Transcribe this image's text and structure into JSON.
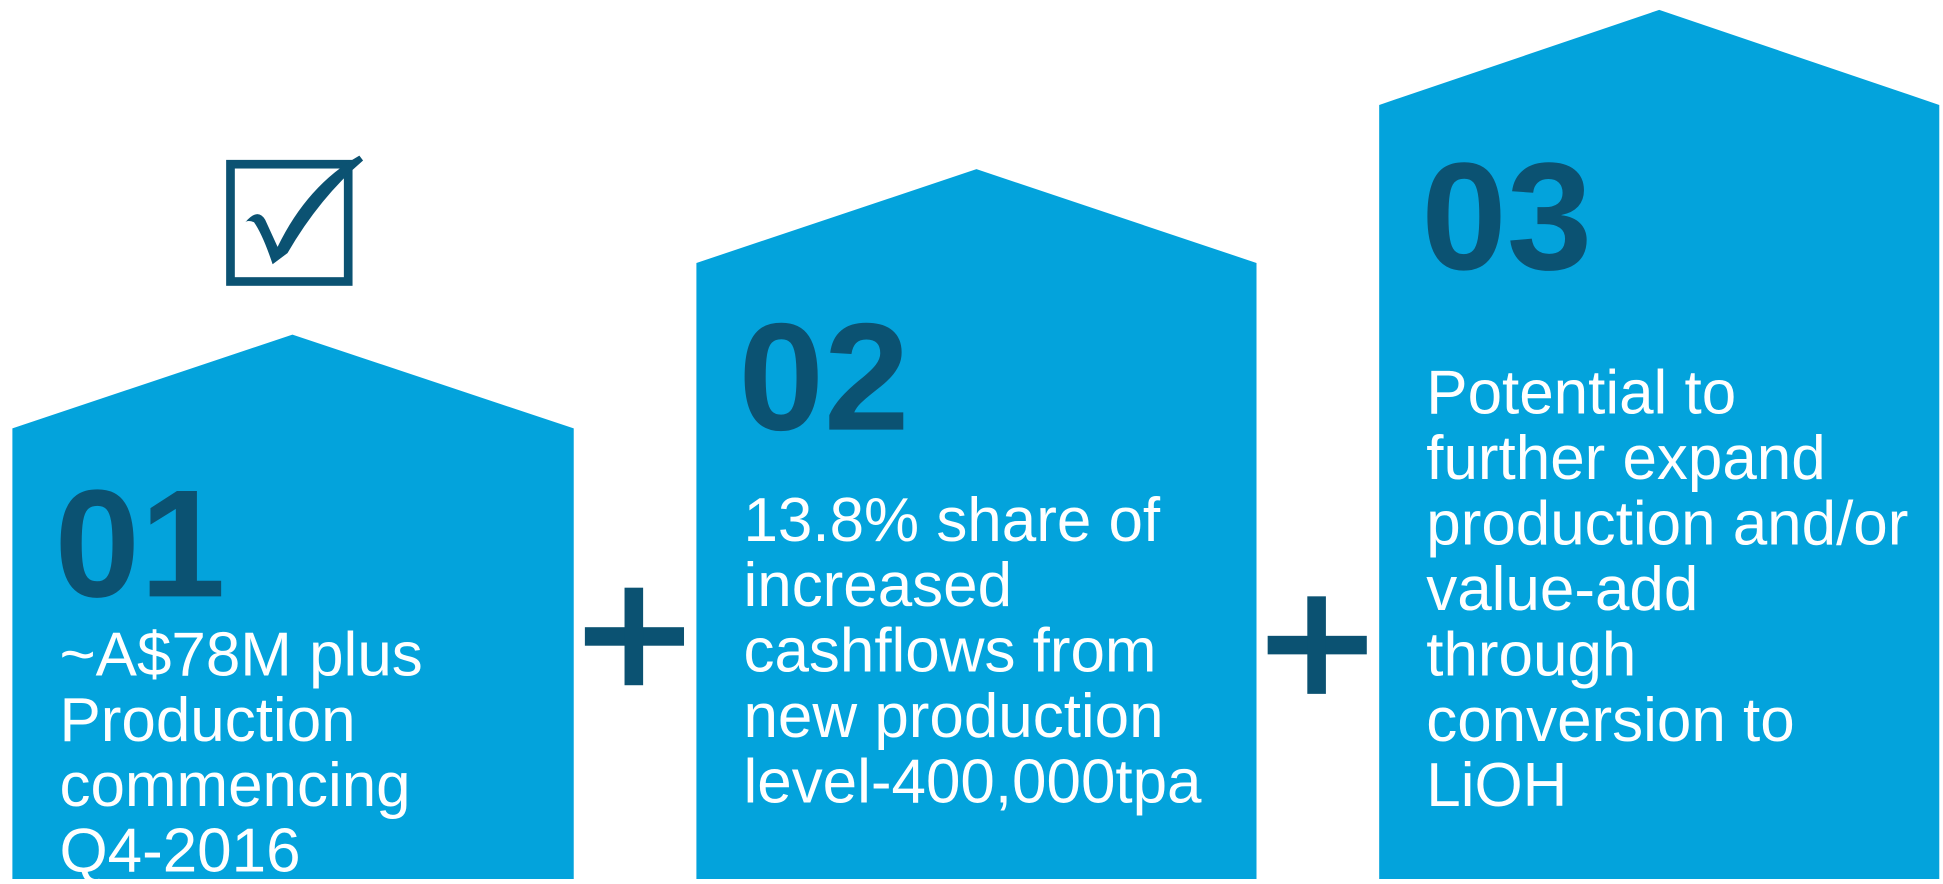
{
  "items": [
    {
      "number": "01",
      "lines": [
        "~A$78M plus",
        "Production",
        "commencing",
        "Q4-2016"
      ]
    },
    {
      "number": "02",
      "lines": [
        "13.8% share of",
        "increased",
        "cashflows from",
        "new production",
        "level-400,000tpa"
      ]
    },
    {
      "number": "03",
      "lines": [
        "Potential to",
        "further expand",
        "production and/or",
        "value-add",
        "through",
        "conversion to",
        "LiOH"
      ]
    }
  ]
}
